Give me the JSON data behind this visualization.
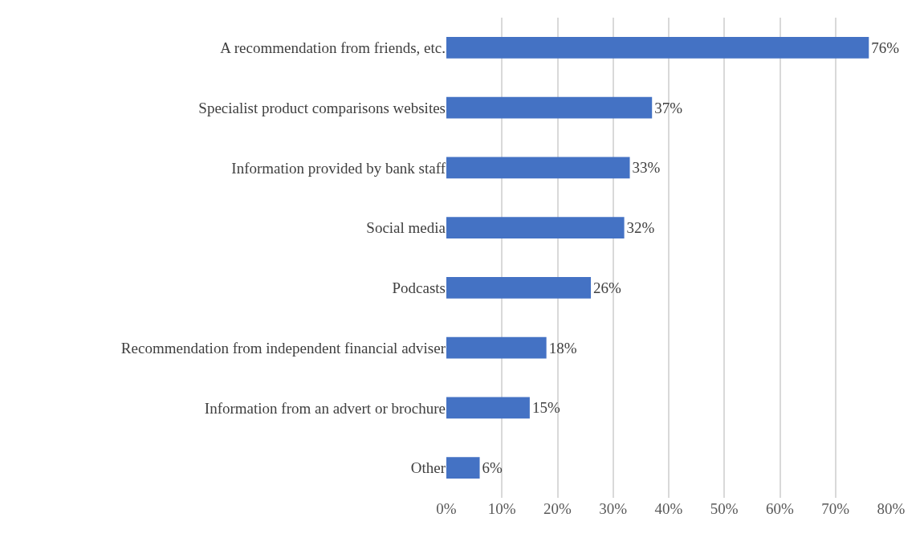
{
  "chart_data": {
    "type": "bar",
    "orientation": "horizontal",
    "categories": [
      "A recommendation from friends, etc.",
      "Specialist product comparisons websites",
      "Information provided by bank staff",
      "Social media",
      "Podcasts",
      "Recommendation from independent financial adviser",
      "Information from an advert or brochure",
      "Other"
    ],
    "values": [
      76,
      37,
      33,
      32,
      26,
      18,
      15,
      6
    ],
    "value_labels": [
      "76%",
      "37%",
      "33%",
      "32%",
      "26%",
      "18%",
      "15%",
      "6%"
    ],
    "color": "#4472c4",
    "xlim": [
      0,
      80
    ],
    "xticks": [
      {
        "value": 0,
        "label": "0%"
      },
      {
        "value": 10,
        "label": "10%"
      },
      {
        "value": 20,
        "label": "20%"
      },
      {
        "value": 30,
        "label": "30%"
      },
      {
        "value": 40,
        "label": "40%"
      },
      {
        "value": 50,
        "label": "50%"
      },
      {
        "value": 60,
        "label": "60%"
      },
      {
        "value": 70,
        "label": "70%"
      },
      {
        "value": 80,
        "label": "80%"
      }
    ],
    "grid": "x",
    "legend": false
  }
}
